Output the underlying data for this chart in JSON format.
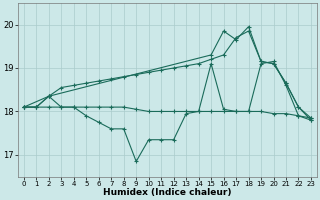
{
  "xlabel": "Humidex (Indice chaleur)",
  "background_color": "#cce8e8",
  "grid_color": "#aacccc",
  "line_color": "#1a6b5a",
  "xlim": [
    -0.5,
    23.5
  ],
  "ylim": [
    16.5,
    20.5
  ],
  "yticks": [
    17,
    18,
    19,
    20
  ],
  "xticks": [
    0,
    1,
    2,
    3,
    4,
    5,
    6,
    7,
    8,
    9,
    10,
    11,
    12,
    13,
    14,
    15,
    16,
    17,
    18,
    19,
    20,
    21,
    22,
    23
  ],
  "series": [
    {
      "x": [
        0,
        1,
        2,
        3,
        4,
        5,
        6,
        7,
        8,
        9,
        10,
        11,
        12,
        13,
        14,
        15,
        16,
        17,
        18,
        19,
        20,
        21,
        22,
        23
      ],
      "y": [
        18.1,
        18.1,
        18.35,
        18.55,
        18.6,
        18.65,
        18.7,
        18.75,
        18.8,
        18.85,
        18.9,
        18.95,
        19.0,
        19.05,
        19.1,
        19.2,
        19.3,
        19.7,
        19.85,
        19.15,
        19.1,
        18.65,
        18.1,
        17.85
      ]
    },
    {
      "x": [
        0,
        1,
        2,
        3,
        4,
        5,
        6,
        7,
        8,
        9,
        10,
        11,
        12,
        13,
        14,
        15,
        16,
        17,
        18,
        19,
        20,
        21,
        22,
        23
      ],
      "y": [
        18.1,
        18.1,
        18.1,
        18.1,
        18.1,
        18.1,
        18.1,
        18.1,
        18.1,
        18.05,
        18.0,
        18.0,
        18.0,
        18.0,
        18.0,
        18.0,
        18.0,
        18.0,
        18.0,
        18.0,
        17.95,
        17.95,
        17.9,
        17.85
      ]
    },
    {
      "x": [
        0,
        1,
        2,
        3,
        4,
        5,
        6,
        7,
        8,
        9,
        10,
        11,
        12,
        13,
        14,
        15,
        16,
        17,
        18,
        19,
        20,
        21,
        22,
        23
      ],
      "y": [
        18.1,
        18.1,
        18.35,
        18.1,
        18.1,
        17.9,
        17.75,
        17.6,
        17.6,
        16.85,
        17.35,
        17.35,
        17.35,
        17.95,
        18.0,
        19.1,
        18.05,
        18.0,
        18.0,
        19.1,
        19.15,
        18.6,
        17.9,
        17.8
      ]
    },
    {
      "x": [
        0,
        2,
        15,
        16,
        17,
        18,
        19,
        20,
        21,
        22,
        23
      ],
      "y": [
        18.1,
        18.35,
        19.3,
        19.85,
        19.65,
        19.95,
        19.15,
        19.1,
        18.65,
        18.1,
        17.8
      ]
    }
  ]
}
